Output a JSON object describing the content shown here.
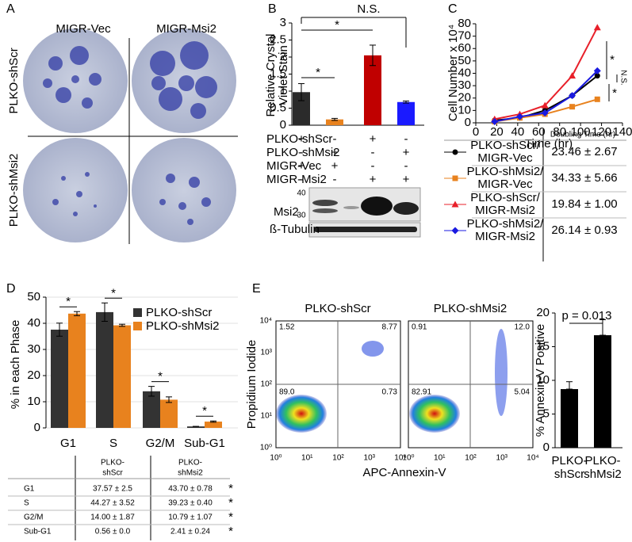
{
  "panel_labels": [
    "A",
    "B",
    "C",
    "D",
    "E"
  ],
  "panel_a": {
    "columns": [
      "MIGR-Vec",
      "MIGR-Msi2"
    ],
    "rows": [
      "PLKO-shScr",
      "PLKO-shMsi2"
    ]
  },
  "chart_data": [
    {
      "type": "bar",
      "ylabel": [
        "Relative Crystal",
        "Violet Stain"
      ],
      "values": [
        0.97,
        0.17,
        2.05,
        0.68
      ],
      "errors": [
        0.25,
        0.03,
        0.3,
        0.03
      ],
      "colors": [
        "#2b2b2b",
        "#e8821e",
        "#c00000",
        "#1a1aff"
      ],
      "ylim": [
        0,
        3
      ],
      "yticks": [
        0,
        0.5,
        1,
        1.5,
        2,
        2.5,
        3
      ],
      "annotations": [
        "*",
        "*",
        "N.S."
      ]
    },
    {
      "type": "line",
      "ylabel": "Cell Number x 10⁴",
      "xlabel": "Time (hr)",
      "x": [
        18,
        42,
        66,
        92,
        116
      ],
      "series": [
        {
          "color": "#000000",
          "marker": "circle",
          "values": [
            2,
            4,
            10,
            22,
            38
          ]
        },
        {
          "color": "#e8821e",
          "marker": "square",
          "values": [
            1,
            4,
            7,
            13,
            19
          ]
        },
        {
          "color": "#e8202a",
          "marker": "triangle",
          "values": [
            3,
            7,
            14,
            38,
            77
          ]
        },
        {
          "color": "#1a1ae0",
          "marker": "diamond",
          "values": [
            1,
            5,
            8,
            22,
            42
          ]
        }
      ],
      "xlim": [
        0,
        140
      ],
      "xticks": [
        0,
        20,
        40,
        60,
        80,
        100,
        120,
        140
      ],
      "ylim": [
        0,
        80
      ],
      "yticks": [
        0,
        10,
        20,
        30,
        40,
        50,
        60,
        70,
        80
      ],
      "annotations": [
        "*",
        "N.S.",
        "*"
      ]
    },
    {
      "type": "grouped_bar",
      "ylabel": "% in each Phase",
      "categories": [
        "G1",
        "S",
        "G2/M",
        "Sub-G1"
      ],
      "series": [
        {
          "name": "PLKO-shScr",
          "color": "#333333",
          "values": [
            37.57,
            44.27,
            14.0,
            0.56
          ],
          "errors": [
            2.5,
            3.52,
            1.87,
            0.0
          ]
        },
        {
          "name": "PLKO-shMsi2",
          "color": "#e8821e",
          "values": [
            43.7,
            39.23,
            10.79,
            2.41
          ],
          "errors": [
            0.78,
            0.4,
            1.07,
            0.24
          ]
        }
      ],
      "ylim": [
        0,
        50
      ],
      "yticks": [
        0,
        10,
        20,
        30,
        40,
        50
      ],
      "grid": true,
      "legend": "upper right",
      "annotations": [
        "*",
        "*",
        "*",
        "*"
      ]
    },
    {
      "type": "bar",
      "ylabel": "% Annexin-V Positive",
      "categories": [
        [
          "PLKO-",
          "shScr"
        ],
        [
          "PLKO-",
          "shMsi2"
        ]
      ],
      "values": [
        8.7,
        16.7
      ],
      "errors": [
        1.1,
        2.3
      ],
      "colors": [
        "#000000",
        "#000000"
      ],
      "ylim": [
        0,
        20
      ],
      "yticks": [
        0,
        5,
        10,
        15,
        20
      ],
      "annotations": [
        "p = 0.013"
      ]
    }
  ],
  "panel_b": {
    "conditions": [
      {
        "label": "PLKO-shScr",
        "marks": [
          "+",
          "-",
          "+",
          "-"
        ]
      },
      {
        "label": "PLKO-shMsi2",
        "marks": [
          "-",
          "+",
          "-",
          "+"
        ]
      },
      {
        "label": "MIGR-Vec",
        "marks": [
          "+",
          "+",
          "-",
          "-"
        ]
      },
      {
        "label": "MIGR-Msi2",
        "marks": [
          "-",
          "-",
          "+",
          "+"
        ]
      }
    ],
    "blot_labels": [
      "Msi2",
      "ß-Tubulin"
    ],
    "markers": [
      "40",
      "30"
    ]
  },
  "panel_c_table": {
    "header": "Doubling Time (hr)",
    "rows": [
      {
        "name": [
          "PLKO-shScr/",
          "MIGR-Vec"
        ],
        "value": "23.46 ± 2.67"
      },
      {
        "name": [
          "PLKO-shMsi2/",
          "MIGR-Vec"
        ],
        "value": "34.33 ± 5.66"
      },
      {
        "name": [
          "PLKO-shScr/",
          "MIGR-Msi2"
        ],
        "value": "19.84 ± 1.00"
      },
      {
        "name": [
          "PLKO-shMsi2/",
          "MIGR-Msi2"
        ],
        "value": "26.14 ± 0.93"
      }
    ]
  },
  "panel_d_table": {
    "columns": [
      [
        "PLKO-",
        "shScr"
      ],
      [
        "PLKO-",
        "shMsi2"
      ]
    ],
    "rows": [
      {
        "label": "G1",
        "values": [
          "37.57 ± 2.5",
          "43.70 ± 0.78"
        ],
        "mark": "*"
      },
      {
        "label": "S",
        "values": [
          "44.27 ± 3.52",
          "39.23 ± 0.40"
        ],
        "mark": "*"
      },
      {
        "label": "G2/M",
        "values": [
          "14.00 ± 1.87",
          "10.79 ± 1.07"
        ],
        "mark": "*"
      },
      {
        "label": "Sub-G1",
        "values": [
          "0.56 ± 0.0",
          "2.41 ± 0.24"
        ],
        "mark": "*"
      }
    ]
  },
  "panel_e_flow": {
    "titles": [
      "PLKO-shScr",
      "PLKO-shMsi2"
    ],
    "quadrants": [
      [
        "1.52",
        "8.77",
        "89.0",
        "0.73"
      ],
      [
        "0.91",
        "12.0",
        "82.91",
        "5.04"
      ]
    ],
    "ticks": [
      "10⁰",
      "10¹",
      "10²",
      "10³",
      "10⁴"
    ],
    "ylabel": "Propidium Iodide",
    "xlabel": "APC-Annexin-V"
  }
}
